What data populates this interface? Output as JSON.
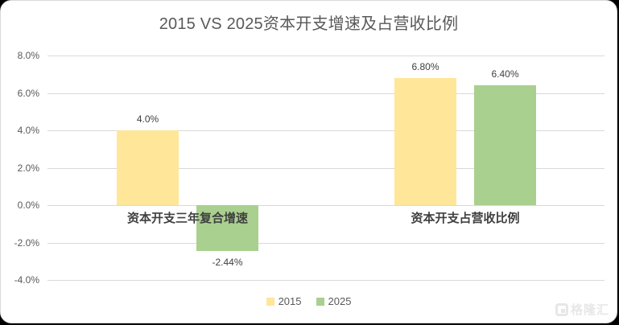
{
  "chart_data": {
    "type": "bar",
    "title": "2015 VS 2025资本开支增速及占营收比例",
    "categories": [
      "资本开支三年复合增速",
      "资本开支占营收比例"
    ],
    "series": [
      {
        "name": "2015",
        "color": "#FFE699",
        "values": [
          4.0,
          6.8
        ],
        "data_labels": [
          "4.0%",
          "6.80%"
        ]
      },
      {
        "name": "2025",
        "color": "#A9D08E",
        "values": [
          -2.44,
          6.4
        ],
        "data_labels": [
          "-2.44%",
          "6.40%"
        ]
      }
    ],
    "ylim": [
      -4,
      8
    ],
    "yticks": [
      {
        "value": 8,
        "label": "8.0%"
      },
      {
        "value": 6,
        "label": "6.0%"
      },
      {
        "value": 4,
        "label": "4.0%"
      },
      {
        "value": 2,
        "label": "2.0%"
      },
      {
        "value": 0,
        "label": "0.0%"
      },
      {
        "value": -2,
        "label": "-2.0%"
      },
      {
        "value": -4,
        "label": "-4.0%"
      }
    ],
    "grid": true,
    "legend_position": "bottom"
  },
  "colors": {
    "gridline": "#d9d9d9",
    "title_text": "#595959",
    "axis_text": "#595959",
    "data_label_text": "#404040",
    "background": "#ffffff"
  },
  "watermark": {
    "icon": "gelonghui-g-logo",
    "text": "格隆汇"
  }
}
